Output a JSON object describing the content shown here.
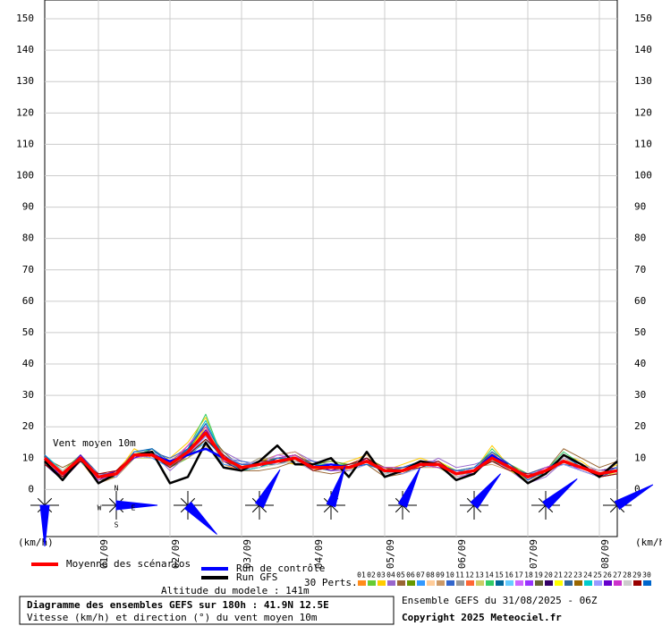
{
  "chart_data": {
    "type": "line",
    "ylim": [
      -15,
      156
    ],
    "yticks": [
      0,
      10,
      20,
      30,
      40,
      50,
      60,
      70,
      80,
      90,
      100,
      110,
      120,
      130,
      140,
      150
    ],
    "y_unit": "(km/h)",
    "annotation": "Vent moyen 10m",
    "grid": true,
    "categories": [
      null,
      null,
      null,
      "01/09",
      null,
      null,
      null,
      "02/09",
      null,
      null,
      null,
      "03/09",
      null,
      null,
      null,
      "04/09",
      null,
      null,
      null,
      "05/09",
      null,
      null,
      null,
      "06/09",
      null,
      null,
      null,
      "07/09",
      null,
      null,
      null,
      "08/09",
      null
    ],
    "series": [
      {
        "name": "Moyenne des scénarios",
        "color": "#ff0000",
        "values": [
          10,
          5,
          10,
          4,
          5,
          11,
          11,
          8,
          12,
          18,
          10,
          7,
          8,
          9,
          10,
          7,
          7,
          7,
          9,
          6,
          6,
          8,
          8,
          5,
          6,
          10,
          7,
          4,
          6,
          9,
          7,
          5,
          6
        ]
      },
      {
        "name": "Run de contrôle",
        "color": "#0000ff",
        "values": [
          10,
          5,
          10,
          4,
          5,
          11,
          11,
          9,
          11,
          13,
          10,
          7,
          8,
          9,
          10,
          7,
          8,
          7,
          9,
          6,
          6,
          8,
          8,
          5,
          6,
          11,
          7,
          4,
          6,
          9,
          7,
          5,
          6
        ]
      },
      {
        "name": "Run GFS",
        "color": "#000000",
        "values": [
          9,
          3,
          10,
          2,
          5,
          11,
          12,
          2,
          4,
          15,
          7,
          6,
          9,
          14,
          8,
          8,
          10,
          4,
          12,
          4,
          6,
          9,
          8,
          3,
          5,
          11,
          7,
          2,
          5,
          11,
          8,
          4,
          9
        ]
      }
    ],
    "perturbations_label": "30 Perts.",
    "perturbations": [
      {
        "name": "01",
        "color": "#ff8c1a",
        "values": [
          9,
          3,
          9,
          2,
          6,
          12,
          12,
          9,
          14,
          20,
          8,
          6,
          9,
          10,
          9,
          8,
          6,
          8,
          10,
          5,
          7,
          9,
          7,
          4,
          5,
          12,
          6,
          3,
          5,
          10,
          8,
          6,
          7
        ]
      },
      {
        "name": "02",
        "color": "#66cc33",
        "values": [
          10,
          6,
          11,
          5,
          4,
          10,
          13,
          7,
          10,
          16,
          11,
          8,
          7,
          8,
          11,
          6,
          8,
          6,
          8,
          7,
          5,
          7,
          9,
          6,
          7,
          9,
          8,
          5,
          7,
          8,
          6,
          4,
          5
        ]
      },
      {
        "name": "03",
        "color": "#ffcc00",
        "values": [
          11,
          4,
          10,
          3,
          5,
          13,
          10,
          10,
          15,
          23,
          9,
          7,
          10,
          9,
          8,
          7,
          7,
          9,
          11,
          6,
          8,
          10,
          8,
          5,
          6,
          14,
          7,
          3,
          6,
          11,
          9,
          5,
          8
        ]
      },
      {
        "name": "04",
        "color": "#9966cc",
        "values": [
          8,
          5,
          9,
          4,
          6,
          11,
          12,
          6,
          11,
          17,
          12,
          9,
          8,
          11,
          12,
          9,
          8,
          7,
          9,
          5,
          6,
          7,
          10,
          7,
          8,
          10,
          6,
          2,
          4,
          9,
          7,
          6,
          6
        ]
      },
      {
        "name": "05",
        "color": "#996633",
        "values": [
          10,
          7,
          10,
          5,
          5,
          12,
          11,
          9,
          13,
          19,
          10,
          6,
          6,
          7,
          9,
          6,
          5,
          6,
          8,
          4,
          5,
          8,
          7,
          4,
          5,
          11,
          8,
          4,
          6,
          13,
          10,
          7,
          9
        ]
      },
      {
        "name": "06",
        "color": "#669900",
        "values": [
          9,
          4,
          11,
          3,
          4,
          10,
          12,
          8,
          12,
          21,
          9,
          8,
          9,
          10,
          11,
          8,
          9,
          8,
          10,
          7,
          7,
          9,
          9,
          6,
          6,
          9,
          7,
          5,
          7,
          9,
          6,
          4,
          5
        ]
      },
      {
        "name": "07",
        "color": "#3399ff",
        "values": [
          10,
          5,
          9,
          4,
          6,
          11,
          10,
          7,
          11,
          15,
          8,
          7,
          8,
          8,
          10,
          7,
          7,
          7,
          9,
          6,
          6,
          8,
          8,
          5,
          6,
          10,
          7,
          4,
          6,
          9,
          7,
          5,
          6
        ]
      },
      {
        "name": "08",
        "color": "#ffcc99",
        "values": [
          11,
          6,
          10,
          5,
          5,
          12,
          13,
          9,
          14,
          22,
          11,
          7,
          7,
          9,
          9,
          6,
          8,
          8,
          11,
          5,
          7,
          9,
          8,
          4,
          5,
          12,
          8,
          3,
          5,
          10,
          8,
          6,
          7
        ]
      },
      {
        "name": "09",
        "color": "#cc9966",
        "values": [
          9,
          3,
          10,
          2,
          4,
          10,
          11,
          8,
          10,
          14,
          9,
          6,
          9,
          11,
          12,
          8,
          6,
          6,
          8,
          6,
          5,
          7,
          7,
          6,
          7,
          8,
          6,
          5,
          7,
          8,
          7,
          4,
          6
        ]
      },
      {
        "name": "10",
        "color": "#3366cc",
        "values": [
          10,
          5,
          11,
          4,
          6,
          11,
          12,
          10,
          13,
          18,
          10,
          9,
          8,
          9,
          10,
          9,
          7,
          7,
          9,
          7,
          6,
          8,
          9,
          5,
          6,
          11,
          7,
          4,
          6,
          9,
          7,
          5,
          6
        ]
      },
      {
        "name": "11",
        "color": "#999999",
        "values": [
          8,
          4,
          9,
          3,
          5,
          12,
          11,
          7,
          12,
          17,
          9,
          7,
          10,
          10,
          9,
          7,
          8,
          8,
          10,
          6,
          7,
          9,
          8,
          5,
          5,
          10,
          7,
          4,
          5,
          10,
          8,
          6,
          7
        ]
      },
      {
        "name": "12",
        "color": "#ff6633",
        "values": [
          10,
          6,
          10,
          5,
          5,
          11,
          12,
          8,
          11,
          20,
          11,
          8,
          8,
          8,
          11,
          6,
          7,
          6,
          9,
          5,
          6,
          7,
          8,
          6,
          7,
          9,
          6,
          5,
          7,
          9,
          6,
          4,
          5
        ]
      },
      {
        "name": "13",
        "color": "#cccc66",
        "values": [
          11,
          5,
          10,
          4,
          6,
          10,
          10,
          9,
          12,
          19,
          10,
          6,
          7,
          9,
          10,
          7,
          6,
          7,
          8,
          6,
          5,
          8,
          7,
          4,
          6,
          11,
          8,
          3,
          6,
          10,
          7,
          5,
          6
        ]
      },
      {
        "name": "14",
        "color": "#33cc66",
        "values": [
          9,
          4,
          11,
          4,
          5,
          11,
          13,
          8,
          13,
          24,
          9,
          7,
          8,
          10,
          9,
          8,
          8,
          8,
          10,
          6,
          7,
          9,
          9,
          5,
          6,
          13,
          7,
          4,
          6,
          12,
          8,
          6,
          7
        ]
      },
      {
        "name": "15",
        "color": "#006699",
        "values": [
          10,
          5,
          10,
          5,
          4,
          12,
          11,
          7,
          11,
          16,
          10,
          8,
          9,
          8,
          10,
          7,
          7,
          7,
          9,
          7,
          6,
          8,
          8,
          6,
          6,
          9,
          7,
          5,
          6,
          8,
          7,
          4,
          6
        ]
      },
      {
        "name": "16",
        "color": "#66ccff",
        "values": [
          10,
          6,
          9,
          3,
          5,
          11,
          12,
          9,
          12,
          18,
          11,
          7,
          7,
          9,
          11,
          6,
          7,
          8,
          9,
          5,
          6,
          7,
          8,
          5,
          7,
          10,
          6,
          4,
          5,
          9,
          7,
          5,
          5
        ]
      },
      {
        "name": "17",
        "color": "#cc66ff",
        "values": [
          9,
          4,
          10,
          4,
          6,
          10,
          11,
          8,
          14,
          21,
          9,
          6,
          8,
          11,
          10,
          8,
          6,
          6,
          10,
          6,
          7,
          9,
          9,
          4,
          5,
          11,
          8,
          3,
          6,
          10,
          8,
          6,
          7
        ]
      },
      {
        "name": "18",
        "color": "#9933ff",
        "values": [
          11,
          5,
          11,
          5,
          5,
          12,
          12,
          8,
          12,
          17,
          10,
          8,
          9,
          9,
          9,
          7,
          8,
          7,
          8,
          6,
          6,
          8,
          7,
          6,
          6,
          10,
          7,
          5,
          7,
          9,
          6,
          4,
          6
        ]
      },
      {
        "name": "19",
        "color": "#666633",
        "values": [
          10,
          5,
          10,
          4,
          4,
          11,
          10,
          9,
          11,
          19,
          12,
          7,
          8,
          8,
          10,
          7,
          7,
          8,
          9,
          7,
          5,
          8,
          8,
          5,
          6,
          9,
          7,
          4,
          6,
          9,
          7,
          5,
          6
        ]
      },
      {
        "name": "20",
        "color": "#330066",
        "values": [
          8,
          3,
          9,
          3,
          6,
          11,
          12,
          7,
          13,
          18,
          9,
          6,
          7,
          10,
          11,
          8,
          7,
          7,
          10,
          5,
          6,
          9,
          8,
          5,
          6,
          10,
          8,
          4,
          5,
          10,
          8,
          6,
          7
        ]
      },
      {
        "name": "21",
        "color": "#ffff00",
        "values": [
          10,
          6,
          10,
          4,
          5,
          12,
          11,
          8,
          12,
          20,
          10,
          8,
          9,
          9,
          9,
          6,
          8,
          6,
          9,
          6,
          7,
          7,
          9,
          6,
          7,
          11,
          6,
          3,
          6,
          9,
          7,
          5,
          5
        ]
      },
      {
        "name": "22",
        "color": "#336699",
        "values": [
          10,
          5,
          11,
          5,
          5,
          10,
          13,
          9,
          11,
          16,
          11,
          7,
          8,
          8,
          10,
          7,
          6,
          7,
          8,
          6,
          6,
          8,
          7,
          5,
          5,
          10,
          7,
          5,
          7,
          8,
          6,
          4,
          6
        ]
      },
      {
        "name": "23",
        "color": "#996600",
        "values": [
          9,
          4,
          10,
          4,
          6,
          11,
          11,
          8,
          12,
          18,
          9,
          7,
          8,
          10,
          11,
          8,
          7,
          8,
          10,
          7,
          6,
          9,
          8,
          4,
          6,
          12,
          8,
          4,
          6,
          11,
          8,
          6,
          7
        ]
      },
      {
        "name": "24",
        "color": "#00cccc",
        "values": [
          11,
          6,
          9,
          3,
          5,
          12,
          12,
          7,
          13,
          22,
          10,
          6,
          7,
          9,
          10,
          7,
          8,
          7,
          9,
          5,
          7,
          8,
          8,
          6,
          6,
          9,
          7,
          4,
          5,
          9,
          7,
          5,
          6
        ]
      },
      {
        "name": "25",
        "color": "#9999ff",
        "values": [
          10,
          5,
          10,
          5,
          4,
          11,
          10,
          9,
          11,
          17,
          11,
          8,
          9,
          8,
          9,
          6,
          7,
          6,
          8,
          6,
          5,
          7,
          9,
          5,
          7,
          10,
          6,
          5,
          6,
          8,
          6,
          4,
          5
        ]
      },
      {
        "name": "26",
        "color": "#6600cc",
        "values": [
          9,
          4,
          11,
          4,
          6,
          10,
          12,
          8,
          12,
          19,
          10,
          7,
          8,
          9,
          10,
          8,
          6,
          8,
          10,
          6,
          6,
          9,
          8,
          5,
          6,
          11,
          8,
          3,
          6,
          10,
          8,
          6,
          7
        ]
      },
      {
        "name": "27",
        "color": "#cc33cc",
        "values": [
          10,
          5,
          10,
          3,
          5,
          11,
          11,
          8,
          14,
          20,
          9,
          8,
          8,
          10,
          11,
          7,
          7,
          7,
          9,
          7,
          7,
          8,
          7,
          6,
          5,
          10,
          7,
          4,
          7,
          9,
          7,
          5,
          6
        ]
      },
      {
        "name": "28",
        "color": "#cccccc",
        "values": [
          10,
          6,
          10,
          4,
          5,
          12,
          12,
          9,
          12,
          18,
          10,
          7,
          7,
          8,
          9,
          7,
          8,
          7,
          9,
          5,
          6,
          8,
          8,
          4,
          6,
          10,
          7,
          4,
          6,
          10,
          8,
          6,
          6
        ]
      },
      {
        "name": "29",
        "color": "#990000",
        "values": [
          8,
          4,
          9,
          5,
          6,
          11,
          11,
          7,
          11,
          16,
          11,
          6,
          9,
          9,
          10,
          6,
          7,
          8,
          10,
          6,
          6,
          7,
          9,
          5,
          6,
          9,
          6,
          5,
          5,
          9,
          7,
          4,
          5
        ]
      },
      {
        "name": "30",
        "color": "#0066cc",
        "values": [
          11,
          5,
          10,
          4,
          5,
          12,
          13,
          8,
          13,
          21,
          10,
          8,
          8,
          10,
          10,
          8,
          7,
          7,
          8,
          6,
          7,
          9,
          8,
          6,
          7,
          12,
          8,
          3,
          6,
          11,
          7,
          5,
          7
        ]
      }
    ],
    "directions": [
      180,
      90,
      135,
      30,
      20,
      25,
      40,
      50,
      60
    ],
    "compass": [
      "N",
      "E",
      "S",
      "W"
    ],
    "model_altitude": "Altitude du modele : 141m",
    "title": "Diagramme des ensembles GEFS sur 180h : 41.9N 12.5E",
    "subtitle": "Vitesse (km/h) et direction (°) du vent moyen 10m",
    "run_info": "Ensemble GEFS du 31/08/2025 - 06Z",
    "copyright": "Copyright 2025 Meteociel.fr"
  }
}
